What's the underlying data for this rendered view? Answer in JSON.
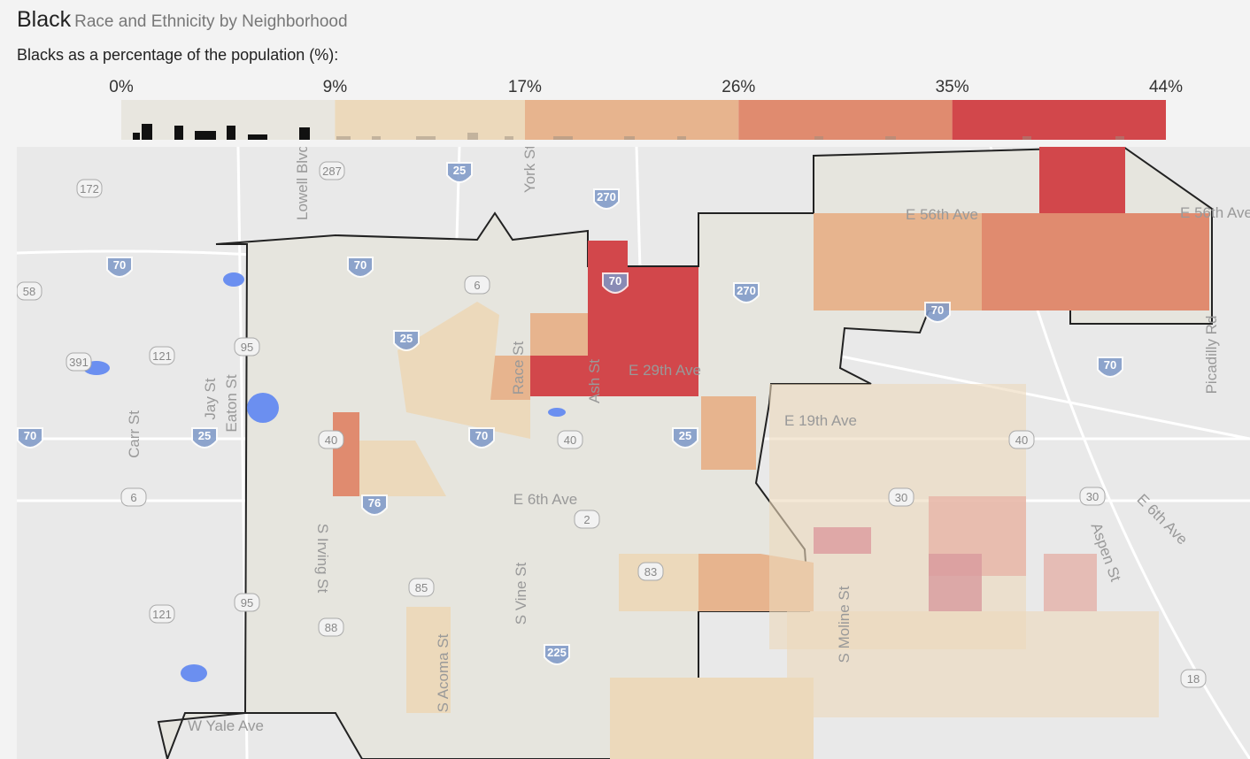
{
  "header": {
    "title": "Black",
    "subtitle": "Race and Ethnicity by Neighborhood"
  },
  "legend": {
    "label": "Blacks as a percentage of the population (%):",
    "ticks": [
      {
        "value": 0,
        "label": "0%"
      },
      {
        "value": 9,
        "label": "9%"
      },
      {
        "value": 17,
        "label": "17%"
      },
      {
        "value": 26,
        "label": "26%"
      },
      {
        "value": 35,
        "label": "35%"
      },
      {
        "value": 44,
        "label": "44%"
      }
    ],
    "colors": [
      "#e8e6df",
      "#ecd9bb",
      "#e7b48e",
      "#e08b6f",
      "#d2474b"
    ]
  },
  "map": {
    "streets": [
      "E 56th Ave",
      "E 56th Ave",
      "E 29th Ave",
      "E 19th Ave",
      "E 6th Ave",
      "E 6th Ave",
      "W Yale Ave",
      "Race St",
      "Ash St",
      "S Irving St",
      "S Vine St",
      "S Acoma St",
      "Aspen St",
      "S Moline St",
      "Picadilly Rd",
      "Eaton St",
      "Jay St",
      "Carr St",
      "Lowell Blvd",
      "York St"
    ],
    "interstates": [
      "270",
      "270",
      "70",
      "70",
      "70",
      "70",
      "70",
      "70",
      "70",
      "25",
      "25",
      "25",
      "25",
      "76",
      "225"
    ],
    "routes": [
      "287",
      "6",
      "6",
      "40",
      "40",
      "40",
      "2",
      "85",
      "83",
      "30",
      "30",
      "121",
      "121",
      "95",
      "95",
      "88",
      "391",
      "172",
      "58",
      "18"
    ]
  }
}
